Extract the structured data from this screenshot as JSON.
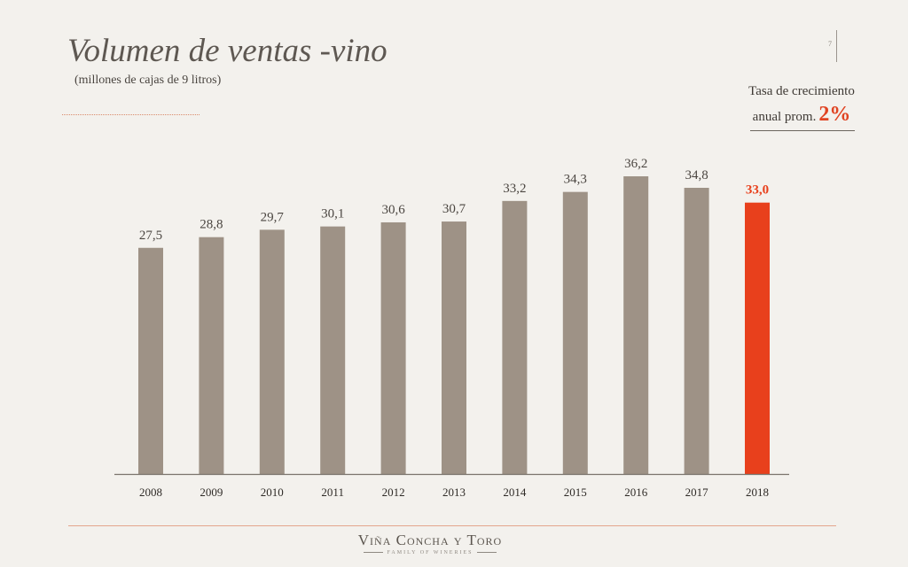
{
  "header": {
    "title": "Volumen de ventas -vino",
    "subtitle": "(millones de cajas de 9 litros)",
    "page_number": "7"
  },
  "growth": {
    "label_line1": "Tasa de crecimiento",
    "label_line2": "anual prom.",
    "value": "2%"
  },
  "colors": {
    "bar": "#9e9286",
    "highlight": "#e8401c",
    "axis": "#7a746d",
    "label": "#4a4540"
  },
  "chart_data": {
    "type": "bar",
    "categories": [
      "2008",
      "2009",
      "2010",
      "2011",
      "2012",
      "2013",
      "2014",
      "2015",
      "2016",
      "2017",
      "2018"
    ],
    "values": [
      27.5,
      28.8,
      29.7,
      30.1,
      30.6,
      30.7,
      33.2,
      34.3,
      36.2,
      34.8,
      33.0
    ],
    "data_labels": [
      "27,5",
      "28,8",
      "29,7",
      "30,1",
      "30,6",
      "30,7",
      "33,2",
      "34,3",
      "36,2",
      "34,8",
      "33,0"
    ],
    "highlight_index": 10,
    "ylim": [
      0,
      36.2
    ],
    "title": "Volumen de ventas -vino",
    "xlabel": "",
    "ylabel": "",
    "grid": false,
    "legend": "none"
  },
  "footer": {
    "logo_text": "Viña Concha y Toro",
    "logo_subtext": "FAMILY OF WINERIES"
  }
}
